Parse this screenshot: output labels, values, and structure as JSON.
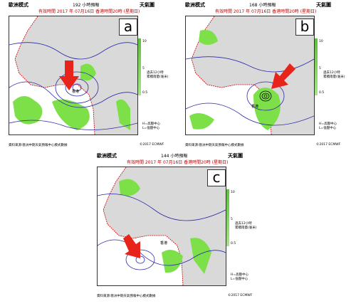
{
  "model": "歐洲模式",
  "chart_title": "天氣圖",
  "valid": "有效時間 2017 年 07月16日    香港時間20時  (星期日)",
  "side_note": [
    "過去12小時",
    "累積雨量(毫米)"
  ],
  "scale_ticks": [
    "10",
    "5",
    "0.5"
  ],
  "legend": [
    "H=高壓中心",
    "L=低壓中心"
  ],
  "credit_left": "資料來源:歐洲中期天氣預報中心模式數據",
  "credit_right": "©2017 ECMWF",
  "hk_label": "香港",
  "colors": {
    "rain": "#7ee048",
    "isobar": "#2a2aa8",
    "coast": "#c00000",
    "land": "#d9d9d9",
    "arrow": "#e8231a"
  },
  "panels": [
    {
      "id": "a",
      "letter": "a",
      "forecast": "192 小時預報"
    },
    {
      "id": "b",
      "letter": "b",
      "forecast": "168 小時預報"
    },
    {
      "id": "c",
      "letter": "c",
      "forecast": "144 小時預報"
    }
  ]
}
